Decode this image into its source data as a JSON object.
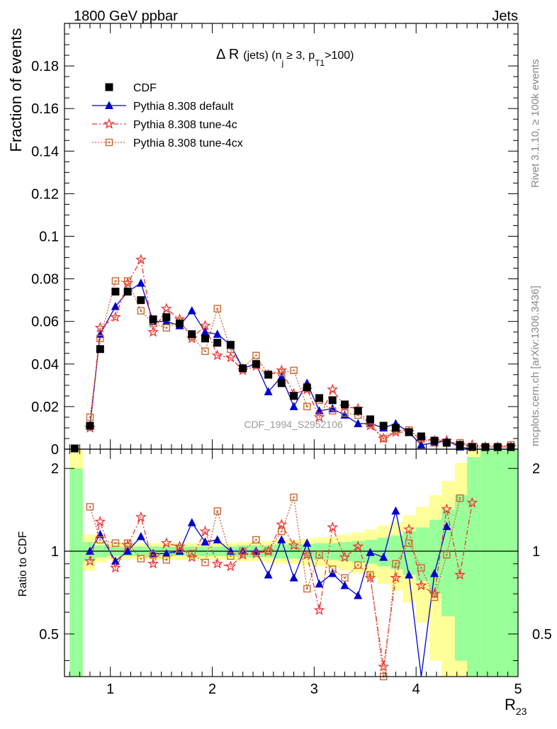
{
  "header": {
    "energy": "1800 GeV ppbar",
    "process": "Jets"
  },
  "side": {
    "rivet": "Rivet 3.1.10, ≥ 100k events",
    "mcplots": "mcplots.cern.ch [arXiv:1306.3436]"
  },
  "title_parts": {
    "delta": "Δ R",
    "jets": "(jets) (n",
    "sub_j": "j",
    "ge3": "≥ 3, p",
    "sub_t1": "T1",
    "gt100": ">100)"
  },
  "watermark": "CDF_1994_S2952106",
  "xlabel_main": "R",
  "xlabel_sub": "23",
  "ratio_ylabel": "Ratio to CDF",
  "legend": [
    {
      "key": "cdf",
      "label": "CDF"
    },
    {
      "key": "default",
      "label": "Pythia 8.308 default"
    },
    {
      "key": "tune4c",
      "label": "Pythia 8.308 tune-4c"
    },
    {
      "key": "tune4cx",
      "label": "Pythia 8.308 tune-4cx"
    }
  ],
  "colors": {
    "cdf": "#000000",
    "default": "#0000cc",
    "tune4c": "#ee3333",
    "tune4cx": "#cc6633",
    "band_inner": "#99ff99",
    "band_outer": "#ffff99"
  },
  "chart_data": {
    "type": "scatter",
    "main": {
      "ylabel": "Fraction of events",
      "ylim": [
        0,
        0.2
      ],
      "yticks": [
        0,
        0.02,
        0.04,
        0.06,
        0.08,
        0.1,
        0.12,
        0.14,
        0.16,
        0.18
      ],
      "yticklabels": [
        "0",
        "0.02",
        "0.04",
        "0.06",
        "0.08",
        "0.1",
        "0.12",
        "0.14",
        "0.16",
        "0.18"
      ],
      "xlim": [
        0.55,
        5.0
      ],
      "xticks": [
        1,
        2,
        3,
        4,
        5
      ],
      "xticklabels": [
        "1",
        "2",
        "3",
        "4",
        "5"
      ]
    },
    "ratio": {
      "ylim": [
        0.35,
        2.35
      ],
      "ytick_values": [
        0.5,
        1,
        2
      ],
      "yticklabels": [
        "0.5",
        "1",
        "2"
      ],
      "reference": 1
    },
    "x": [
      0.65,
      0.8,
      0.9,
      1.05,
      1.17,
      1.3,
      1.42,
      1.55,
      1.68,
      1.8,
      1.93,
      2.05,
      2.18,
      2.3,
      2.43,
      2.55,
      2.68,
      2.8,
      2.93,
      3.05,
      3.18,
      3.3,
      3.43,
      3.55,
      3.68,
      3.8,
      3.93,
      4.05,
      4.18,
      4.3,
      4.43,
      4.55,
      4.68,
      4.8,
      4.93
    ],
    "series": [
      {
        "name": "CDF",
        "key": "cdf",
        "y": [
          0.0,
          0.011,
          0.047,
          0.074,
          0.074,
          0.07,
          0.061,
          0.062,
          0.059,
          0.054,
          0.052,
          0.05,
          0.049,
          0.038,
          0.04,
          0.035,
          0.031,
          0.025,
          0.029,
          0.024,
          0.023,
          0.021,
          0.018,
          0.014,
          0.011,
          0.01,
          0.008,
          0.006,
          0.004,
          0.003,
          0.002,
          0.001,
          0.001,
          0.001,
          0.001
        ]
      },
      {
        "name": "Pythia 8.308 default",
        "key": "default",
        "y": [
          null,
          0.011,
          0.054,
          0.067,
          0.074,
          0.078,
          0.06,
          0.06,
          0.058,
          0.065,
          0.055,
          0.054,
          0.049,
          0.038,
          0.04,
          0.027,
          0.034,
          0.02,
          0.031,
          0.018,
          0.019,
          0.016,
          0.012,
          0.012,
          0.01,
          0.012,
          0.008,
          0.002,
          0.003,
          0.004,
          0.001,
          0.0,
          0.0,
          0.0,
          0.0
        ]
      },
      {
        "name": "Pythia 8.308 tune-4c",
        "key": "tune4c",
        "y": [
          null,
          0.01,
          0.057,
          0.062,
          0.078,
          0.089,
          0.055,
          0.066,
          0.061,
          0.052,
          0.058,
          0.044,
          0.043,
          0.037,
          0.039,
          0.035,
          0.037,
          0.026,
          0.028,
          0.015,
          0.028,
          0.02,
          0.019,
          0.011,
          0.005,
          0.008,
          0.008,
          0.005,
          0.004,
          0.004,
          0.002,
          0.002,
          0.001,
          0.001,
          0.001
        ]
      },
      {
        "name": "Pythia 8.308 tune-4cx",
        "key": "tune4cx",
        "y": [
          null,
          0.015,
          0.052,
          0.079,
          0.079,
          0.065,
          0.059,
          0.057,
          0.06,
          0.053,
          0.046,
          0.066,
          0.047,
          0.038,
          0.044,
          0.035,
          0.036,
          0.037,
          0.02,
          0.023,
          0.018,
          0.017,
          0.016,
          0.012,
          0.005,
          0.009,
          0.009,
          0.005,
          0.003,
          0.003,
          0.003,
          0.001,
          0.001,
          0.001,
          0.002
        ]
      }
    ],
    "ratio_series": [
      {
        "key": "default",
        "values": [
          null,
          1.0,
          1.15,
          0.92,
          1.0,
          1.13,
          0.98,
          0.98,
          1.0,
          1.27,
          1.08,
          1.1,
          1.0,
          1.0,
          1.0,
          0.82,
          1.1,
          0.8,
          1.07,
          0.76,
          0.83,
          0.75,
          0.69,
          0.99,
          0.95,
          1.4,
          0.82,
          0.3,
          0.83,
          1.23,
          null,
          null,
          null,
          null,
          null
        ]
      },
      {
        "key": "tune4c",
        "values": [
          null,
          0.92,
          1.28,
          0.87,
          1.05,
          1.33,
          0.9,
          1.07,
          1.04,
          0.95,
          1.18,
          0.9,
          0.88,
          0.97,
          0.98,
          1.0,
          1.25,
          1.05,
          0.97,
          0.61,
          1.22,
          0.95,
          1.04,
          0.8,
          0.38,
          0.8,
          1.2,
          0.75,
          0.7,
          1.42,
          0.82,
          1.5,
          null,
          null,
          null
        ]
      },
      {
        "key": "tune4cx",
        "values": [
          null,
          1.45,
          1.1,
          1.07,
          1.07,
          0.94,
          0.97,
          0.93,
          1.02,
          0.98,
          0.91,
          1.4,
          0.96,
          1.0,
          1.1,
          1.0,
          1.18,
          1.57,
          0.73,
          0.97,
          0.86,
          0.8,
          0.89,
          0.82,
          0.35,
          0.9,
          1.07,
          0.87,
          0.68,
          0.97,
          1.56,
          null,
          null,
          null,
          null
        ]
      }
    ],
    "bands": {
      "edges": [
        0.6,
        0.73,
        0.85,
        0.97,
        1.1,
        1.23,
        1.35,
        1.48,
        1.61,
        1.73,
        1.86,
        1.98,
        2.11,
        2.24,
        2.36,
        2.49,
        2.61,
        2.74,
        2.87,
        2.99,
        3.12,
        3.24,
        3.37,
        3.5,
        3.62,
        3.75,
        3.87,
        4.0,
        4.13,
        4.25,
        4.38,
        4.5,
        4.63,
        4.75,
        4.88,
        5.0
      ],
      "inner": [
        1.0,
        0.08,
        0.05,
        0.04,
        0.04,
        0.04,
        0.04,
        0.04,
        0.04,
        0.04,
        0.04,
        0.04,
        0.04,
        0.05,
        0.05,
        0.05,
        0.06,
        0.06,
        0.06,
        0.07,
        0.07,
        0.08,
        0.09,
        0.1,
        0.12,
        0.14,
        0.18,
        0.22,
        0.3,
        0.42,
        0.6,
        1.2,
        1.4,
        1.4,
        1.4
      ],
      "outer": [
        1.6,
        0.15,
        0.09,
        0.07,
        0.07,
        0.07,
        0.07,
        0.07,
        0.07,
        0.07,
        0.07,
        0.07,
        0.07,
        0.08,
        0.08,
        0.09,
        0.1,
        0.1,
        0.11,
        0.12,
        0.13,
        0.15,
        0.17,
        0.2,
        0.24,
        0.28,
        0.35,
        0.45,
        0.6,
        0.8,
        1.1,
        1.6,
        1.6,
        1.6,
        1.6
      ]
    }
  }
}
